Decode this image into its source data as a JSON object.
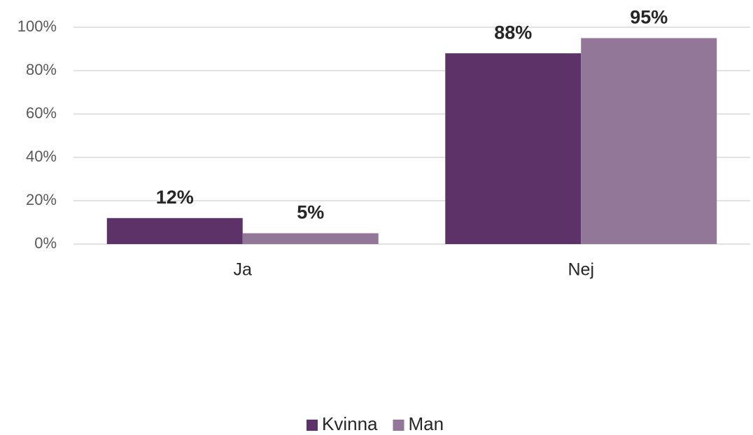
{
  "chart_data": {
    "type": "bar",
    "categories": [
      "Ja",
      "Nej"
    ],
    "series": [
      {
        "name": "Kvinna",
        "color": "#5c3269",
        "values": [
          12,
          88
        ],
        "value_labels": [
          "12%",
          "88%"
        ]
      },
      {
        "name": "Man",
        "color": "#937799",
        "values": [
          5,
          95
        ],
        "value_labels": [
          "5%",
          "95%"
        ]
      }
    ],
    "ylim": [
      0,
      100
    ],
    "yticks": [
      {
        "value": 0,
        "label": "0%"
      },
      {
        "value": 20,
        "label": "20%"
      },
      {
        "value": 40,
        "label": "40%"
      },
      {
        "value": 60,
        "label": "60%"
      },
      {
        "value": 80,
        "label": "80%"
      },
      {
        "value": 100,
        "label": "100%"
      }
    ],
    "grid": true,
    "legend": "bottom"
  }
}
